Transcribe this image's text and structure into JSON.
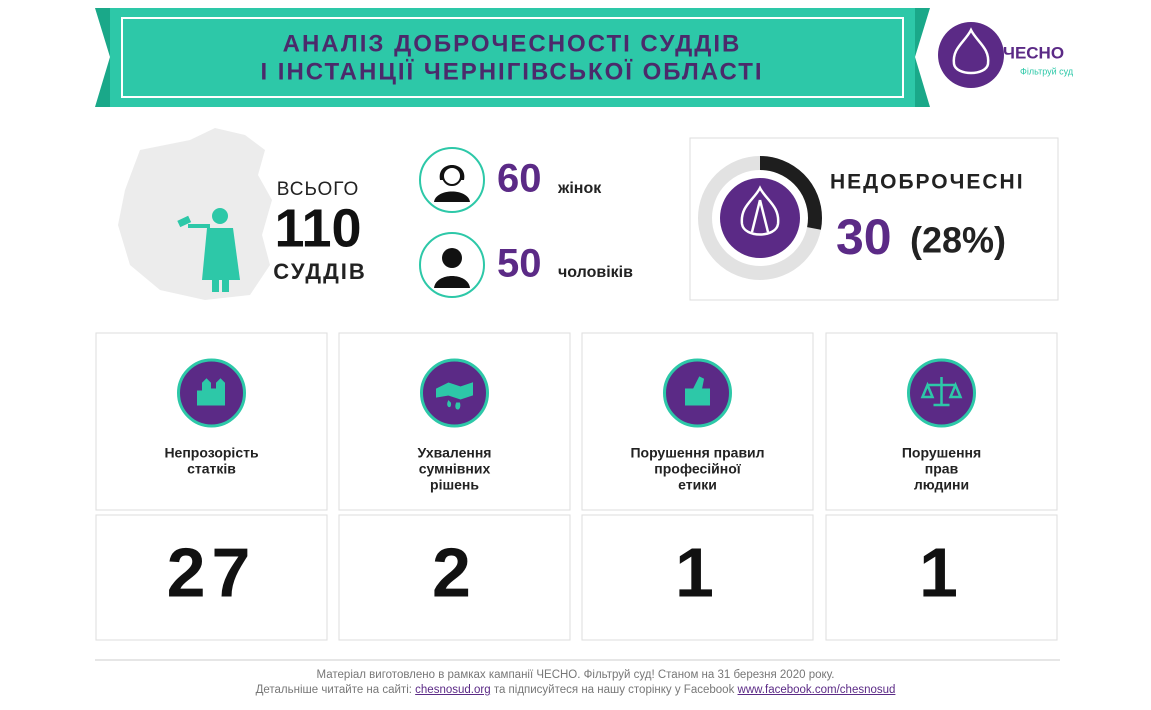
{
  "header": {
    "title_lines": [
      "АНАЛІЗ ДОБРОЧЕСНОСТІ СУДДІВ",
      "І ІНСТАНЦІЇ ЧЕРНІГІВСЬКОЇ ОБЛАСТІ"
    ],
    "logo": {
      "name": "ЧЕСНО",
      "tagline": "Фільтруй суд"
    }
  },
  "summary": {
    "total_label_top": "ВСЬОГО",
    "total": 110,
    "total_label_bottom": "СУДДІВ",
    "women": {
      "count": 60,
      "label": "жінок"
    },
    "men": {
      "count": 50,
      "label": "чоловіків"
    }
  },
  "dishonest": {
    "label": "НЕДОБРОЧЕСНІ",
    "count": 30,
    "share": {
      "value": 28,
      "label": "(28%)"
    }
  },
  "categories": [
    {
      "label_lines": [
        "Непрозорість",
        "статків"
      ],
      "count": 27
    },
    {
      "label_lines": [
        "Ухвалення",
        "сумнівних",
        "рішень"
      ],
      "count": 2
    },
    {
      "label_lines": [
        "Порушення правил",
        "професійної",
        "етики"
      ],
      "count": 1
    },
    {
      "label_lines": [
        "Порушення",
        "прав",
        "людини"
      ],
      "count": 1
    }
  ],
  "footer": {
    "line1": "Матеріал виготовлено в рамках кампанії ЧЕСНО. Фільтруй суд! Станом на 31 березня 2020 року.",
    "line2_start": "Детальніше читайте на сайті:",
    "site_link": "chesnosud.org",
    "line2_middle": "та підписуйтеся на нашу сторінку у Facebook",
    "facebook_link": "www.facebook.com/chesnosud"
  }
}
